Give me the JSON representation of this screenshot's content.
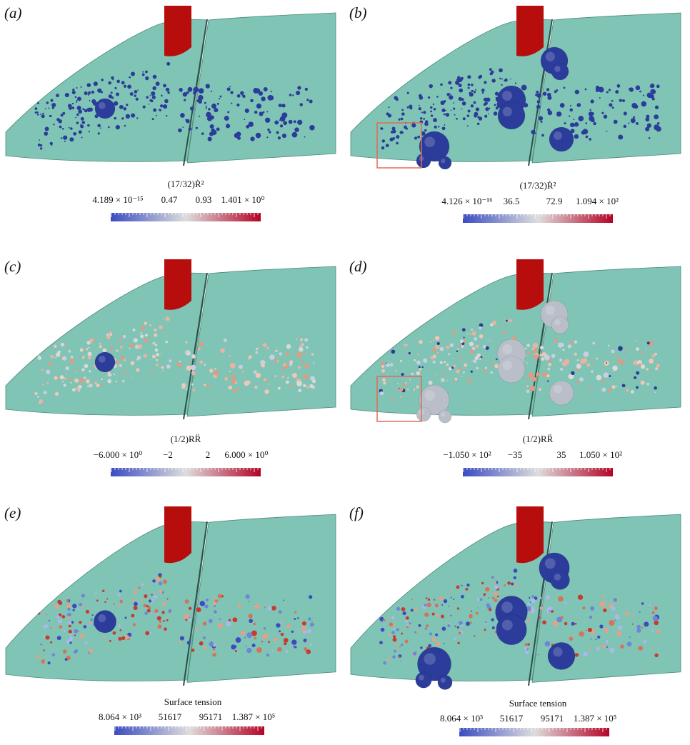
{
  "colors": {
    "surface": "#7fc4b4",
    "surface_edge": "#4f8a7d",
    "cylinder": "#b80d0d",
    "bubble_blue": "#2b3c9a",
    "bubble_light": "#b9bec9",
    "highlight_box": "#e36a5a",
    "cmap_low": "#3b4cc0",
    "cmap_mid": "#dddddd",
    "cmap_high": "#b40426"
  },
  "panels": [
    {
      "tag": "(a)",
      "colorbar_title": "(17/32)Ṙ²",
      "ticks": [
        "4.189 × 10⁻¹⁵",
        "0.47",
        "0.93",
        "1.401 × 10⁰"
      ],
      "bubble_style": "blue",
      "highlight": false
    },
    {
      "tag": "(b)",
      "colorbar_title": "(17/32)Ṙ²",
      "ticks": [
        "4.126 × 10⁻¹⁶",
        "36.5",
        "72.9",
        "1.094 × 10²"
      ],
      "bubble_style": "blue",
      "highlight": true
    },
    {
      "tag": "(c)",
      "colorbar_title": "(1/2)RR̈",
      "ticks": [
        "−6.000 × 10⁰",
        "−2",
        "2",
        "6.000 × 10⁰"
      ],
      "bubble_style": "mixed",
      "highlight": false
    },
    {
      "tag": "(d)",
      "colorbar_title": "(1/2)RR̈",
      "ticks": [
        "−1.050 × 10²",
        "−35",
        "35",
        "1.050 × 10²"
      ],
      "bubble_style": "light",
      "highlight": true
    },
    {
      "tag": "(e)",
      "colorbar_title": "Surface tension",
      "ticks": [
        "8.064 × 10³",
        "51617",
        "95171",
        "1.387 × 10⁵"
      ],
      "bubble_style": "tension",
      "highlight": false
    },
    {
      "tag": "(f)",
      "colorbar_title": "Surface tension",
      "ticks": [
        "8.064 × 10³",
        "51617",
        "95171",
        "1.387 × 10⁵"
      ],
      "bubble_style": "tension",
      "highlight": false
    }
  ]
}
